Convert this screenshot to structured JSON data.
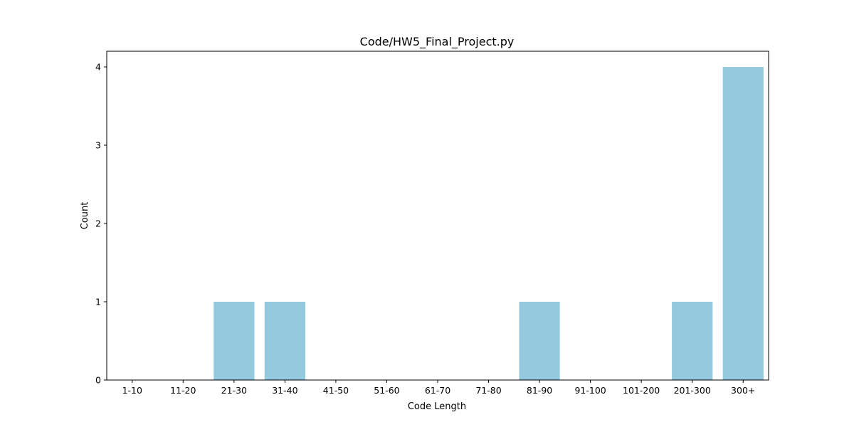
{
  "chart_data": {
    "type": "bar",
    "title": "Code/HW5_Final_Project.py",
    "xlabel": "Code Length",
    "ylabel": "Count",
    "categories": [
      "1-10",
      "11-20",
      "21-30",
      "31-40",
      "41-50",
      "51-60",
      "61-70",
      "71-80",
      "81-90",
      "91-100",
      "101-200",
      "201-300",
      "300+"
    ],
    "values": [
      0,
      0,
      1,
      1,
      0,
      0,
      0,
      0,
      1,
      0,
      0,
      1,
      4
    ],
    "yticks": [
      0,
      1,
      2,
      3,
      4
    ],
    "ylim": [
      0,
      4.2
    ],
    "grid": false,
    "bar_color": "#95c9de"
  }
}
